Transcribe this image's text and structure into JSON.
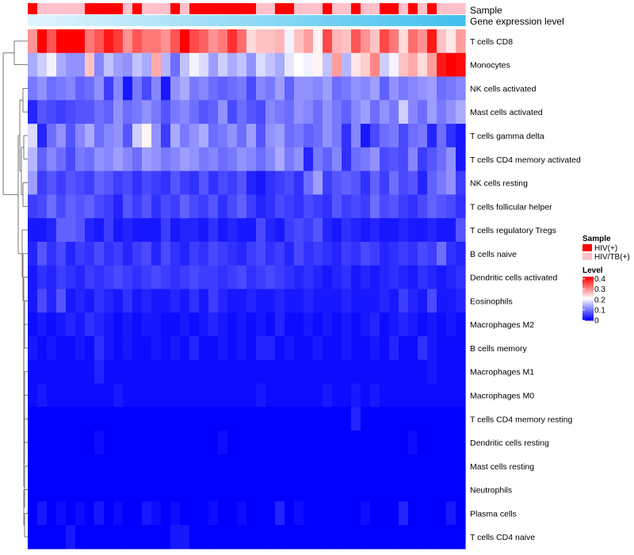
{
  "chart_data": {
    "type": "heatmap",
    "title": "",
    "colors": {
      "low": "#0000ff",
      "mid": "#ffffff",
      "high": "#ff0000",
      "hiv": "#ff0000",
      "hivtb": "#ffc0cb",
      "gene_low": "#e0f5ff",
      "gene_high": "#43c0ee",
      "dendro": "#555555"
    },
    "annotation_rows": [
      "Sample",
      "Gene expression level"
    ],
    "sample_groups": [
      "HIV(+)",
      "HIV/TB(+)",
      "HIV/TB(+)",
      "HIV/TB(+)",
      "HIV/TB(+)",
      "HIV/TB(+)",
      "HIV(+)",
      "HIV(+)",
      "HIV(+)",
      "HIV(+)",
      "HIV/TB(+)",
      "HIV(+)",
      "HIV/TB(+)",
      "HIV/TB(+)",
      "HIV/TB(+)",
      "HIV(+)",
      "HIV/TB(+)",
      "HIV(+)",
      "HIV(+)",
      "HIV(+)",
      "HIV(+)",
      "HIV(+)",
      "HIV(+)",
      "HIV(+)",
      "HIV/TB(+)",
      "HIV/TB(+)",
      "HIV(+)",
      "HIV(+)",
      "HIV/TB(+)",
      "HIV/TB(+)",
      "HIV/TB(+)",
      "HIV(+)",
      "HIV/TB(+)",
      "HIV/TB(+)",
      "HIV(+)",
      "HIV/TB(+)",
      "HIV/TB(+)",
      "HIV(+)",
      "HIV(+)",
      "HIV/TB(+)",
      "HIV(+)",
      "HIV/TB(+)",
      "HIV(+)",
      "HIV/TB(+)",
      "HIV/TB(+)",
      "HIV/TB(+)"
    ],
    "gene_expression_level": [
      0.0,
      0.022,
      0.044,
      0.067,
      0.089,
      0.111,
      0.133,
      0.156,
      0.178,
      0.2,
      0.222,
      0.244,
      0.267,
      0.289,
      0.311,
      0.333,
      0.356,
      0.378,
      0.4,
      0.422,
      0.444,
      0.467,
      0.489,
      0.511,
      0.533,
      0.556,
      0.578,
      0.6,
      0.622,
      0.644,
      0.667,
      0.689,
      0.711,
      0.733,
      0.756,
      0.778,
      0.8,
      0.822,
      0.844,
      0.867,
      0.889,
      0.911,
      0.933,
      0.956,
      0.978,
      1.0
    ],
    "rows": [
      "T cells CD8",
      "Monocytes",
      "NK cells activated",
      "Mast cells activated",
      "T cells gamma delta",
      "T cells CD4 memory activated",
      "NK cells resting",
      "T cells follicular helper",
      "T cells regulatory  Tregs",
      "B cells naive",
      "Dendritic cells activated",
      "Eosinophils",
      "Macrophages M2",
      "B cells memory",
      "Macrophages M1",
      "Macrophages M0",
      "T cells CD4 memory resting",
      "Dendritic cells resting",
      "Mast cells resting",
      "Neutrophils",
      "Plasma cells",
      "T cells CD4 naive"
    ],
    "values": [
      [
        0.3,
        0.42,
        0.35,
        0.44,
        0.44,
        0.45,
        0.32,
        0.35,
        0.4,
        0.37,
        0.3,
        0.35,
        0.32,
        0.32,
        0.3,
        0.35,
        0.42,
        0.36,
        0.34,
        0.3,
        0.32,
        0.38,
        0.33,
        0.24,
        0.26,
        0.26,
        0.27,
        0.2,
        0.26,
        0.29,
        0.22,
        0.36,
        0.27,
        0.26,
        0.35,
        0.3,
        0.26,
        0.36,
        0.32,
        0.24,
        0.33,
        0.3,
        0.4,
        0.26,
        0.23,
        0.29
      ],
      [
        0.14,
        0.17,
        0.2,
        0.14,
        0.12,
        0.12,
        0.26,
        0.11,
        0.16,
        0.13,
        0.12,
        0.16,
        0.14,
        0.28,
        0.15,
        0.09,
        0.16,
        0.2,
        0.18,
        0.13,
        0.17,
        0.14,
        0.16,
        0.12,
        0.18,
        0.16,
        0.14,
        0.19,
        0.21,
        0.2,
        0.22,
        0.16,
        0.29,
        0.15,
        0.23,
        0.25,
        0.31,
        0.17,
        0.2,
        0.26,
        0.28,
        0.24,
        0.29,
        0.4,
        0.42,
        0.41
      ],
      [
        0.1,
        0.12,
        0.09,
        0.1,
        0.11,
        0.08,
        0.09,
        0.12,
        0.05,
        0.11,
        0.02,
        0.1,
        0.06,
        0.11,
        0.02,
        0.12,
        0.14,
        0.1,
        0.11,
        0.09,
        0.08,
        0.09,
        0.1,
        0.06,
        0.11,
        0.1,
        0.13,
        0.08,
        0.12,
        0.12,
        0.11,
        0.13,
        0.09,
        0.1,
        0.12,
        0.11,
        0.13,
        0.08,
        0.12,
        0.1,
        0.11,
        0.12,
        0.13,
        0.09,
        0.1,
        0.11
      ],
      [
        0.03,
        0.07,
        0.06,
        0.05,
        0.06,
        0.07,
        0.07,
        0.09,
        0.08,
        0.12,
        0.09,
        0.1,
        0.12,
        0.1,
        0.07,
        0.1,
        0.11,
        0.09,
        0.07,
        0.08,
        0.12,
        0.06,
        0.09,
        0.07,
        0.06,
        0.11,
        0.1,
        0.09,
        0.12,
        0.11,
        0.09,
        0.12,
        0.1,
        0.08,
        0.11,
        0.13,
        0.09,
        0.12,
        0.1,
        0.17,
        0.11,
        0.09,
        0.13,
        0.1,
        0.12,
        0.14
      ],
      [
        0.18,
        0.03,
        0.09,
        0.12,
        0.07,
        0.11,
        0.14,
        0.09,
        0.11,
        0.12,
        0.07,
        0.17,
        0.22,
        0.12,
        0.05,
        0.14,
        0.1,
        0.12,
        0.14,
        0.09,
        0.1,
        0.12,
        0.09,
        0.13,
        0.07,
        0.12,
        0.13,
        0.09,
        0.1,
        0.08,
        0.09,
        0.12,
        0.1,
        0.04,
        0.11,
        0.02,
        0.06,
        0.09,
        0.1,
        0.06,
        0.09,
        0.1,
        0.03,
        0.09,
        0.04,
        0.02
      ],
      [
        0.15,
        0.08,
        0.11,
        0.09,
        0.06,
        0.1,
        0.09,
        0.12,
        0.11,
        0.13,
        0.11,
        0.09,
        0.13,
        0.12,
        0.1,
        0.11,
        0.13,
        0.12,
        0.1,
        0.11,
        0.09,
        0.1,
        0.12,
        0.11,
        0.09,
        0.11,
        0.14,
        0.1,
        0.12,
        0.03,
        0.1,
        0.08,
        0.11,
        0.04,
        0.09,
        0.1,
        0.12,
        0.06,
        0.07,
        0.06,
        0.11,
        0.05,
        0.07,
        0.09,
        0.12,
        0.02
      ],
      [
        0.13,
        0.05,
        0.07,
        0.05,
        0.07,
        0.06,
        0.05,
        0.08,
        0.07,
        0.05,
        0.06,
        0.04,
        0.06,
        0.05,
        0.04,
        0.07,
        0.05,
        0.04,
        0.07,
        0.04,
        0.06,
        0.05,
        0.07,
        0.03,
        0.02,
        0.04,
        0.05,
        0.06,
        0.04,
        0.09,
        0.13,
        0.05,
        0.07,
        0.08,
        0.07,
        0.04,
        0.08,
        0.05,
        0.09,
        0.06,
        0.07,
        0.03,
        0.08,
        0.1,
        0.12,
        0.05
      ],
      [
        0.05,
        0.06,
        0.09,
        0.06,
        0.08,
        0.07,
        0.08,
        0.06,
        0.05,
        0.03,
        0.07,
        0.05,
        0.07,
        0.04,
        0.06,
        0.05,
        0.08,
        0.06,
        0.05,
        0.07,
        0.04,
        0.06,
        0.08,
        0.05,
        0.03,
        0.04,
        0.06,
        0.05,
        0.04,
        0.06,
        0.05,
        0.04,
        0.07,
        0.05,
        0.06,
        0.05,
        0.09,
        0.06,
        0.07,
        0.05,
        0.04,
        0.06,
        0.08,
        0.07,
        0.06,
        0.04
      ],
      [
        0.02,
        0.02,
        0.03,
        0.08,
        0.08,
        0.07,
        0.03,
        0.02,
        0.05,
        0.02,
        0.03,
        0.02,
        0.02,
        0.02,
        0.05,
        0.02,
        0.03,
        0.03,
        0.02,
        0.04,
        0.02,
        0.03,
        0.02,
        0.02,
        0.06,
        0.03,
        0.02,
        0.05,
        0.06,
        0.05,
        0.07,
        0.03,
        0.02,
        0.04,
        0.03,
        0.02,
        0.03,
        0.02,
        0.02,
        0.03,
        0.02,
        0.02,
        0.03,
        0.02,
        0.02,
        0.07
      ],
      [
        0.03,
        0.07,
        0.04,
        0.06,
        0.03,
        0.05,
        0.04,
        0.06,
        0.04,
        0.05,
        0.03,
        0.05,
        0.06,
        0.03,
        0.06,
        0.04,
        0.03,
        0.05,
        0.04,
        0.06,
        0.05,
        0.04,
        0.03,
        0.05,
        0.06,
        0.04,
        0.05,
        0.03,
        0.06,
        0.04,
        0.05,
        0.04,
        0.03,
        0.05,
        0.04,
        0.06,
        0.05,
        0.03,
        0.04,
        0.05,
        0.04,
        0.06,
        0.05,
        0.09,
        0.04,
        0.03
      ],
      [
        0.02,
        0.04,
        0.03,
        0.05,
        0.04,
        0.03,
        0.05,
        0.04,
        0.05,
        0.06,
        0.05,
        0.04,
        0.05,
        0.06,
        0.05,
        0.04,
        0.05,
        0.06,
        0.05,
        0.05,
        0.04,
        0.05,
        0.06,
        0.04,
        0.05,
        0.06,
        0.05,
        0.04,
        0.03,
        0.04,
        0.03,
        0.02,
        0.03,
        0.04,
        0.02,
        0.03,
        0.02,
        0.03,
        0.04,
        0.03,
        0.02,
        0.04,
        0.03,
        0.02,
        0.03,
        0.04
      ],
      [
        0.02,
        0.06,
        0.03,
        0.07,
        0.02,
        0.03,
        0.02,
        0.04,
        0.03,
        0.02,
        0.04,
        0.02,
        0.03,
        0.02,
        0.02,
        0.03,
        0.02,
        0.04,
        0.02,
        0.05,
        0.03,
        0.02,
        0.02,
        0.03,
        0.02,
        0.02,
        0.03,
        0.02,
        0.02,
        0.03,
        0.02,
        0.02,
        0.02,
        0.03,
        0.02,
        0.02,
        0.02,
        0.03,
        0.02,
        0.05,
        0.03,
        0.02,
        0.06,
        0.02,
        0.02,
        0.03
      ],
      [
        0.01,
        0.02,
        0.01,
        0.02,
        0.03,
        0.02,
        0.04,
        0.03,
        0.02,
        0.01,
        0.02,
        0.01,
        0.02,
        0.02,
        0.01,
        0.01,
        0.02,
        0.01,
        0.02,
        0.03,
        0.02,
        0.01,
        0.02,
        0.01,
        0.02,
        0.01,
        0.03,
        0.01,
        0.01,
        0.02,
        0.01,
        0.02,
        0.01,
        0.02,
        0.01,
        0.02,
        0.03,
        0.01,
        0.02,
        0.03,
        0.02,
        0.01,
        0.02,
        0.01,
        0.02,
        0.01
      ],
      [
        0.02,
        0.01,
        0.02,
        0.01,
        0.01,
        0.02,
        0.01,
        0.04,
        0.02,
        0.01,
        0.02,
        0.01,
        0.01,
        0.02,
        0.01,
        0.02,
        0.01,
        0.03,
        0.01,
        0.01,
        0.02,
        0.01,
        0.02,
        0.01,
        0.03,
        0.03,
        0.01,
        0.02,
        0.01,
        0.01,
        0.02,
        0.01,
        0.01,
        0.02,
        0.01,
        0.01,
        0.02,
        0.01,
        0.03,
        0.01,
        0.01,
        0.04,
        0.02,
        0.01,
        0.01,
        0.01
      ],
      [
        0.01,
        0.01,
        0.01,
        0.01,
        0.01,
        0.01,
        0.01,
        0.03,
        0.01,
        0.01,
        0.01,
        0.01,
        0.01,
        0.01,
        0.01,
        0.01,
        0.01,
        0.01,
        0.01,
        0.01,
        0.01,
        0.01,
        0.01,
        0.01,
        0.01,
        0.01,
        0.01,
        0.01,
        0.01,
        0.01,
        0.01,
        0.01,
        0.01,
        0.01,
        0.01,
        0.01,
        0.01,
        0.01,
        0.01,
        0.01,
        0.01,
        0.01,
        0.02,
        0.01,
        0.01,
        0.01
      ],
      [
        0.01,
        0.02,
        0.01,
        0.01,
        0.01,
        0.01,
        0.01,
        0.01,
        0.01,
        0.02,
        0.01,
        0.01,
        0.01,
        0.01,
        0.01,
        0.01,
        0.01,
        0.01,
        0.01,
        0.01,
        0.01,
        0.01,
        0.01,
        0.01,
        0.02,
        0.01,
        0.01,
        0.01,
        0.01,
        0.01,
        0.01,
        0.02,
        0.01,
        0.01,
        0.02,
        0.01,
        0.02,
        0.01,
        0.01,
        0.01,
        0.01,
        0.01,
        0.01,
        0.01,
        0.01,
        0.01
      ],
      [
        0.0,
        0.0,
        0.0,
        0.0,
        0.0,
        0.0,
        0.0,
        0.0,
        0.0,
        0.0,
        0.0,
        0.0,
        0.0,
        0.0,
        0.0,
        0.0,
        0.0,
        0.0,
        0.0,
        0.0,
        0.0,
        0.0,
        0.0,
        0.0,
        0.0,
        0.0,
        0.0,
        0.0,
        0.0,
        0.0,
        0.0,
        0.0,
        0.0,
        0.0,
        0.03,
        0.0,
        0.0,
        0.0,
        0.0,
        0.0,
        0.0,
        0.0,
        0.0,
        0.0,
        0.0,
        0.0
      ],
      [
        0.0,
        0.0,
        0.0,
        0.0,
        0.0,
        0.0,
        0.0,
        0.01,
        0.0,
        0.0,
        0.0,
        0.0,
        0.0,
        0.0,
        0.0,
        0.0,
        0.0,
        0.0,
        0.0,
        0.0,
        0.01,
        0.0,
        0.0,
        0.0,
        0.0,
        0.0,
        0.0,
        0.0,
        0.0,
        0.0,
        0.0,
        0.0,
        0.0,
        0.0,
        0.0,
        0.0,
        0.0,
        0.0,
        0.0,
        0.0,
        0.01,
        0.0,
        0.0,
        0.0,
        0.0,
        0.0
      ],
      [
        0.0,
        0.0,
        0.0,
        0.0,
        0.0,
        0.0,
        0.0,
        0.0,
        0.0,
        0.0,
        0.0,
        0.0,
        0.0,
        0.0,
        0.0,
        0.0,
        0.0,
        0.0,
        0.0,
        0.0,
        0.0,
        0.0,
        0.0,
        0.0,
        0.0,
        0.0,
        0.0,
        0.0,
        0.0,
        0.0,
        0.0,
        0.0,
        0.0,
        0.0,
        0.0,
        0.0,
        0.0,
        0.0,
        0.0,
        0.0,
        0.0,
        0.0,
        0.0,
        0.0,
        0.0,
        0.0
      ],
      [
        0.0,
        0.0,
        0.0,
        0.0,
        0.0,
        0.0,
        0.0,
        0.0,
        0.0,
        0.0,
        0.0,
        0.0,
        0.0,
        0.0,
        0.0,
        0.0,
        0.0,
        0.0,
        0.0,
        0.0,
        0.0,
        0.0,
        0.0,
        0.0,
        0.0,
        0.0,
        0.0,
        0.0,
        0.0,
        0.0,
        0.0,
        0.0,
        0.0,
        0.0,
        0.0,
        0.0,
        0.0,
        0.0,
        0.0,
        0.0,
        0.0,
        0.0,
        0.0,
        0.0,
        0.0,
        0.0
      ],
      [
        0.0,
        0.02,
        0.0,
        0.01,
        0.0,
        0.01,
        0.0,
        0.02,
        0.0,
        0.01,
        0.0,
        0.0,
        0.02,
        0.01,
        0.0,
        0.01,
        0.0,
        0.0,
        0.0,
        0.01,
        0.0,
        0.0,
        0.01,
        0.0,
        0.0,
        0.0,
        0.03,
        0.0,
        0.01,
        0.0,
        0.0,
        0.0,
        0.0,
        0.0,
        0.0,
        0.01,
        0.0,
        0.0,
        0.0,
        0.03,
        0.0,
        0.0,
        0.0,
        0.0,
        0.02,
        0.0
      ],
      [
        0.0,
        0.0,
        0.0,
        0.0,
        0.02,
        0.0,
        0.0,
        0.0,
        0.0,
        0.0,
        0.0,
        0.0,
        0.0,
        0.0,
        0.0,
        0.02,
        0.02,
        0.0,
        0.0,
        0.0,
        0.0,
        0.0,
        0.0,
        0.0,
        0.0,
        0.0,
        0.0,
        0.0,
        0.0,
        0.0,
        0.0,
        0.0,
        0.0,
        0.0,
        0.0,
        0.0,
        0.0,
        0.0,
        0.0,
        0.0,
        0.0,
        0.0,
        0.0,
        0.0,
        0.0,
        0.0
      ]
    ],
    "legend": {
      "sample_title": "Sample",
      "sample_items": [
        "HIV(+)",
        "HIV/TB(+)"
      ],
      "level_title": "Level",
      "level_ticks": [
        "0.4",
        "0.3",
        "0.2",
        "0.1",
        "0"
      ],
      "level_tick_values": [
        0.4,
        0.3,
        0.2,
        0.1,
        0
      ],
      "level_range": [
        0,
        0.42
      ],
      "placement": "right"
    }
  }
}
